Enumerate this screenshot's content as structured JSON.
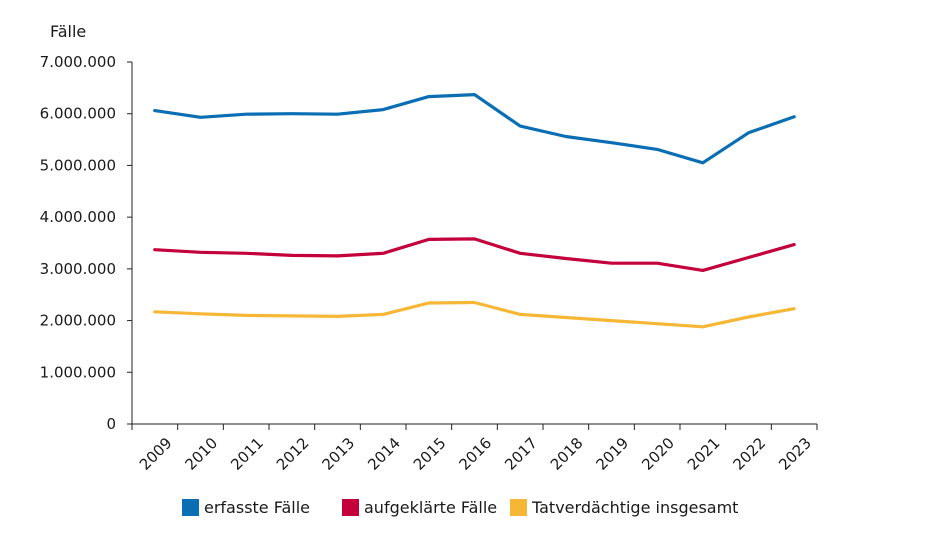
{
  "chart_data": {
    "type": "line",
    "title": "",
    "ylabel": "Fälle",
    "xlabel": "",
    "categories": [
      "2009",
      "2010",
      "2011",
      "2012",
      "2013",
      "2014",
      "2015",
      "2016",
      "2017",
      "2018",
      "2019",
      "2020",
      "2021",
      "2022",
      "2023"
    ],
    "ylim": [
      0,
      7000000
    ],
    "yticks": [
      0,
      1000000,
      2000000,
      3000000,
      4000000,
      5000000,
      6000000,
      7000000
    ],
    "ytick_labels": [
      "0",
      "1.000.000",
      "2.000.000",
      "3.000.000",
      "4.000.000",
      "5.000.000",
      "6.000.000",
      "7.000.000"
    ],
    "grid": false,
    "legend_position": "bottom",
    "series": [
      {
        "name": "erfasste Fälle",
        "color": "#0a6eb4",
        "values": [
          6060000,
          5930000,
          5990000,
          6000000,
          5990000,
          6080000,
          6330000,
          6370000,
          5760000,
          5560000,
          5440000,
          5310000,
          5050000,
          5630000,
          5940000
        ]
      },
      {
        "name": "aufgeklärte Fälle",
        "color": "#c4003c",
        "values": [
          3370000,
          3320000,
          3300000,
          3260000,
          3250000,
          3300000,
          3570000,
          3580000,
          3300000,
          3200000,
          3110000,
          3110000,
          2970000,
          3220000,
          3470000
        ]
      },
      {
        "name": "Tatverdächtige insgesamt",
        "color": "#f5b735",
        "values": [
          2170000,
          2130000,
          2100000,
          2090000,
          2080000,
          2120000,
          2340000,
          2350000,
          2120000,
          2060000,
          2000000,
          1940000,
          1880000,
          2070000,
          2230000
        ]
      }
    ]
  }
}
